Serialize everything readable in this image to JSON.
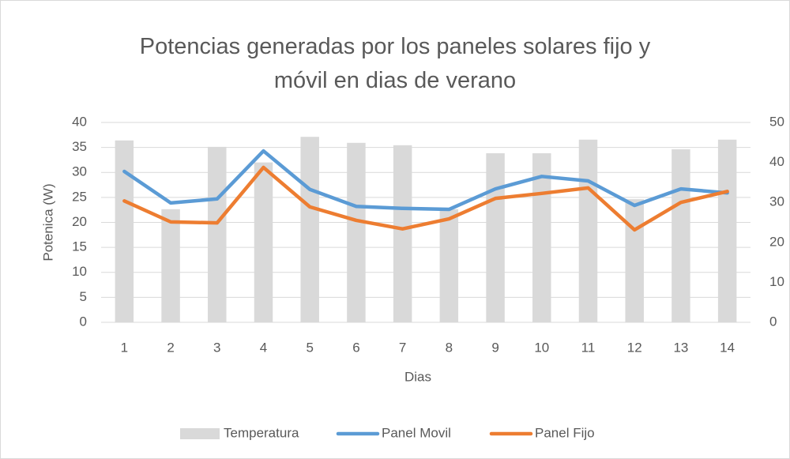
{
  "chart_data": {
    "type": "bar-line",
    "title": "Potencias generadas por los paneles solares fijo y móvil en dias de verano",
    "x_label": "Dias",
    "y_label": "Potenica (W)",
    "categories": [
      "1",
      "2",
      "3",
      "4",
      "5",
      "6",
      "7",
      "8",
      "9",
      "10",
      "11",
      "12",
      "13",
      "14"
    ],
    "series": [
      {
        "name": "Temperatura",
        "type": "bar",
        "axis": "y2",
        "color": "#d9d9d9",
        "values": [
          45.5,
          28.3,
          43.9,
          40,
          46.4,
          44.9,
          44.3,
          28.3,
          42.3,
          42.3,
          45.7,
          30.8,
          43.3,
          45.7
        ]
      },
      {
        "name": "Panel Movil",
        "type": "line",
        "color": "#5b9bd5",
        "values": [
          30.2,
          23.9,
          24.7,
          34.3,
          26.6,
          23.2,
          22.8,
          22.6,
          26.7,
          29.2,
          28.3,
          23.4,
          26.7,
          25.9
        ]
      },
      {
        "name": "Panel Fijo",
        "type": "line",
        "color": "#ed7d31",
        "values": [
          24.3,
          20.1,
          19.9,
          31,
          23.1,
          20.4,
          18.7,
          20.7,
          24.8,
          25.8,
          26.9,
          18.5,
          24,
          26.2
        ]
      }
    ],
    "ylim": [
      0,
      40
    ],
    "yticks": [
      0,
      5,
      10,
      15,
      20,
      25,
      30,
      35,
      40
    ],
    "y2lim": [
      0,
      50
    ],
    "y2ticks": [
      0,
      10,
      20,
      30,
      40,
      50
    ],
    "grid": true,
    "legend": "bottom"
  }
}
